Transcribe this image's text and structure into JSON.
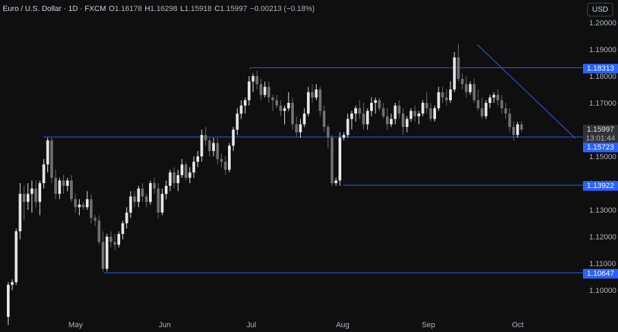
{
  "header": {
    "symbol": "Euro / U.S. Dollar · 1D · FXCM",
    "open_label": "O",
    "open": "1.16178",
    "high_label": "H",
    "high": "1.16298",
    "low_label": "L",
    "low": "1.15918",
    "close_label": "C",
    "close": "1.15997",
    "change": "−0.00213 (−0.18%)"
  },
  "toolbar": {
    "currency": "USD"
  },
  "price_axis": {
    "ticks": [
      "1.20000",
      "1.19000",
      "1.18000",
      "1.17000",
      "1.16000",
      "1.15000",
      "1.14000",
      "1.13000",
      "1.12000",
      "1.11000",
      "1.10000"
    ]
  },
  "time_axis": {
    "months": [
      "May",
      "Jun",
      "Jul",
      "Aug",
      "Sep",
      "Oct"
    ]
  },
  "levels": {
    "r1": "1.18313",
    "s1": "1.15723",
    "s2": "1.13922",
    "s3": "1.10647"
  },
  "last_price": {
    "value": "1.15997",
    "countdown": "13:01:44"
  },
  "colors": {
    "up": "#e6e6e6",
    "down": "#6f6f6f",
    "line": "#2962ff",
    "badge": "#2962ff",
    "bg": "#0f0f0f"
  },
  "chart_data": {
    "type": "candlestick",
    "ylim": [
      1.096,
      1.206
    ],
    "candles": [
      [
        1.09,
        1.103,
        1.087,
        1.102
      ],
      [
        1.102,
        1.104,
        1.1,
        1.103
      ],
      [
        1.103,
        1.123,
        1.102,
        1.122
      ],
      [
        1.122,
        1.14,
        1.119,
        1.136
      ],
      [
        1.136,
        1.139,
        1.126,
        1.133
      ],
      [
        1.133,
        1.14,
        1.13,
        1.136
      ],
      [
        1.136,
        1.141,
        1.129,
        1.138
      ],
      [
        1.138,
        1.141,
        1.131,
        1.133
      ],
      [
        1.133,
        1.141,
        1.128,
        1.14
      ],
      [
        1.14,
        1.149,
        1.138,
        1.147
      ],
      [
        1.147,
        1.157,
        1.144,
        1.156
      ],
      [
        1.156,
        1.157,
        1.14,
        1.142
      ],
      [
        1.142,
        1.145,
        1.134,
        1.136
      ],
      [
        1.136,
        1.142,
        1.134,
        1.141
      ],
      [
        1.141,
        1.143,
        1.136,
        1.139
      ],
      [
        1.139,
        1.142,
        1.137,
        1.141
      ],
      [
        1.141,
        1.143,
        1.133,
        1.134
      ],
      [
        1.134,
        1.136,
        1.129,
        1.131
      ],
      [
        1.131,
        1.134,
        1.128,
        1.132
      ],
      [
        1.132,
        1.133,
        1.13,
        1.131
      ],
      [
        1.131,
        1.137,
        1.13,
        1.134
      ],
      [
        1.134,
        1.136,
        1.125,
        1.127
      ],
      [
        1.127,
        1.128,
        1.124,
        1.126
      ],
      [
        1.126,
        1.128,
        1.117,
        1.118
      ],
      [
        1.118,
        1.122,
        1.107,
        1.108
      ],
      [
        1.108,
        1.121,
        1.107,
        1.12
      ],
      [
        1.12,
        1.122,
        1.116,
        1.118
      ],
      [
        1.118,
        1.121,
        1.115,
        1.117
      ],
      [
        1.117,
        1.122,
        1.116,
        1.121
      ],
      [
        1.121,
        1.126,
        1.119,
        1.125
      ],
      [
        1.125,
        1.131,
        1.123,
        1.129
      ],
      [
        1.129,
        1.137,
        1.127,
        1.135
      ],
      [
        1.135,
        1.137,
        1.131,
        1.133
      ],
      [
        1.133,
        1.139,
        1.131,
        1.138
      ],
      [
        1.138,
        1.14,
        1.133,
        1.135
      ],
      [
        1.135,
        1.136,
        1.131,
        1.133
      ],
      [
        1.133,
        1.141,
        1.132,
        1.14
      ],
      [
        1.14,
        1.142,
        1.136,
        1.138
      ],
      [
        1.138,
        1.14,
        1.127,
        1.129
      ],
      [
        1.129,
        1.138,
        1.128,
        1.136
      ],
      [
        1.136,
        1.141,
        1.134,
        1.139
      ],
      [
        1.139,
        1.145,
        1.137,
        1.144
      ],
      [
        1.144,
        1.146,
        1.138,
        1.14
      ],
      [
        1.14,
        1.145,
        1.137,
        1.143
      ],
      [
        1.143,
        1.149,
        1.142,
        1.147
      ],
      [
        1.147,
        1.148,
        1.141,
        1.142
      ],
      [
        1.142,
        1.146,
        1.14,
        1.144
      ],
      [
        1.144,
        1.15,
        1.142,
        1.148
      ],
      [
        1.148,
        1.152,
        1.146,
        1.15
      ],
      [
        1.15,
        1.16,
        1.148,
        1.158
      ],
      [
        1.158,
        1.161,
        1.154,
        1.156
      ],
      [
        1.156,
        1.157,
        1.15,
        1.152
      ],
      [
        1.152,
        1.157,
        1.15,
        1.155
      ],
      [
        1.155,
        1.157,
        1.147,
        1.149
      ],
      [
        1.149,
        1.151,
        1.146,
        1.148
      ],
      [
        1.148,
        1.15,
        1.143,
        1.145
      ],
      [
        1.145,
        1.155,
        1.144,
        1.154
      ],
      [
        1.154,
        1.161,
        1.152,
        1.16
      ],
      [
        1.16,
        1.168,
        1.158,
        1.166
      ],
      [
        1.166,
        1.171,
        1.164,
        1.169
      ],
      [
        1.169,
        1.172,
        1.166,
        1.171
      ],
      [
        1.171,
        1.18,
        1.169,
        1.178
      ],
      [
        1.178,
        1.181,
        1.174,
        1.18
      ],
      [
        1.18,
        1.182,
        1.175,
        1.177
      ],
      [
        1.177,
        1.179,
        1.171,
        1.173
      ],
      [
        1.173,
        1.178,
        1.172,
        1.176
      ],
      [
        1.176,
        1.178,
        1.17,
        1.172
      ],
      [
        1.172,
        1.173,
        1.167,
        1.171
      ],
      [
        1.171,
        1.173,
        1.168,
        1.169
      ],
      [
        1.169,
        1.171,
        1.165,
        1.167
      ],
      [
        1.167,
        1.169,
        1.162,
        1.168
      ],
      [
        1.168,
        1.174,
        1.167,
        1.17
      ],
      [
        1.17,
        1.172,
        1.16,
        1.162
      ],
      [
        1.162,
        1.165,
        1.157,
        1.159
      ],
      [
        1.159,
        1.164,
        1.157,
        1.162
      ],
      [
        1.162,
        1.168,
        1.161,
        1.166
      ],
      [
        1.166,
        1.176,
        1.165,
        1.174
      ],
      [
        1.174,
        1.177,
        1.17,
        1.172
      ],
      [
        1.172,
        1.177,
        1.171,
        1.175
      ],
      [
        1.175,
        1.176,
        1.165,
        1.167
      ],
      [
        1.167,
        1.169,
        1.159,
        1.161
      ],
      [
        1.161,
        1.162,
        1.153,
        1.157
      ],
      [
        1.157,
        1.158,
        1.139,
        1.14
      ],
      [
        1.14,
        1.142,
        1.139,
        1.141
      ],
      [
        1.141,
        1.159,
        1.139,
        1.157
      ],
      [
        1.157,
        1.159,
        1.156,
        1.158
      ],
      [
        1.158,
        1.166,
        1.157,
        1.164
      ],
      [
        1.164,
        1.167,
        1.16,
        1.166
      ],
      [
        1.166,
        1.169,
        1.163,
        1.168
      ],
      [
        1.168,
        1.171,
        1.164,
        1.166
      ],
      [
        1.166,
        1.17,
        1.16,
        1.162
      ],
      [
        1.162,
        1.168,
        1.16,
        1.167
      ],
      [
        1.167,
        1.172,
        1.165,
        1.17
      ],
      [
        1.17,
        1.172,
        1.166,
        1.171
      ],
      [
        1.171,
        1.172,
        1.167,
        1.168
      ],
      [
        1.168,
        1.17,
        1.164,
        1.165
      ],
      [
        1.165,
        1.168,
        1.16,
        1.162
      ],
      [
        1.162,
        1.166,
        1.161,
        1.164
      ],
      [
        1.164,
        1.17,
        1.162,
        1.169
      ],
      [
        1.169,
        1.171,
        1.164,
        1.166
      ],
      [
        1.166,
        1.168,
        1.158,
        1.161
      ],
      [
        1.161,
        1.165,
        1.159,
        1.164
      ],
      [
        1.164,
        1.168,
        1.163,
        1.167
      ],
      [
        1.167,
        1.169,
        1.163,
        1.165
      ],
      [
        1.165,
        1.167,
        1.162,
        1.166
      ],
      [
        1.166,
        1.171,
        1.165,
        1.17
      ],
      [
        1.17,
        1.174,
        1.166,
        1.168
      ],
      [
        1.168,
        1.17,
        1.163,
        1.164
      ],
      [
        1.164,
        1.169,
        1.163,
        1.168
      ],
      [
        1.168,
        1.176,
        1.167,
        1.174
      ],
      [
        1.174,
        1.176,
        1.17,
        1.172
      ],
      [
        1.172,
        1.175,
        1.169,
        1.171
      ],
      [
        1.171,
        1.178,
        1.17,
        1.175
      ],
      [
        1.175,
        1.189,
        1.174,
        1.187
      ],
      [
        1.187,
        1.192,
        1.178,
        1.179
      ],
      [
        1.179,
        1.181,
        1.175,
        1.177
      ],
      [
        1.177,
        1.18,
        1.172,
        1.174
      ],
      [
        1.174,
        1.178,
        1.173,
        1.177
      ],
      [
        1.177,
        1.179,
        1.17,
        1.171
      ],
      [
        1.171,
        1.175,
        1.167,
        1.168
      ],
      [
        1.168,
        1.172,
        1.164,
        1.165
      ],
      [
        1.165,
        1.171,
        1.164,
        1.17
      ],
      [
        1.17,
        1.173,
        1.168,
        1.172
      ],
      [
        1.172,
        1.174,
        1.17,
        1.173
      ],
      [
        1.173,
        1.175,
        1.169,
        1.171
      ],
      [
        1.171,
        1.173,
        1.166,
        1.168
      ],
      [
        1.168,
        1.17,
        1.164,
        1.166
      ],
      [
        1.166,
        1.168,
        1.159,
        1.161
      ],
      [
        1.161,
        1.163,
        1.156,
        1.158
      ],
      [
        1.158,
        1.163,
        1.157,
        1.162
      ],
      [
        1.162,
        1.163,
        1.159,
        1.16
      ]
    ]
  }
}
